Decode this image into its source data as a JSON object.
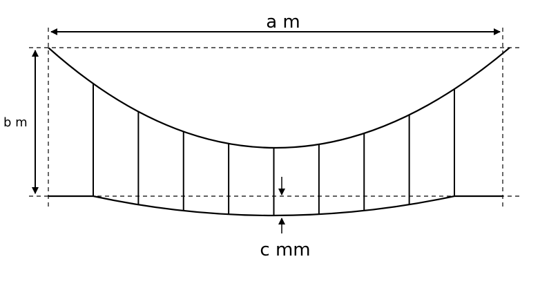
{
  "labels": {
    "span": "a m",
    "sag": "b m",
    "deflection": "c mm"
  },
  "hangers": {
    "count": 9
  },
  "colors": {
    "line": "#000000",
    "background": "#ffffff"
  }
}
